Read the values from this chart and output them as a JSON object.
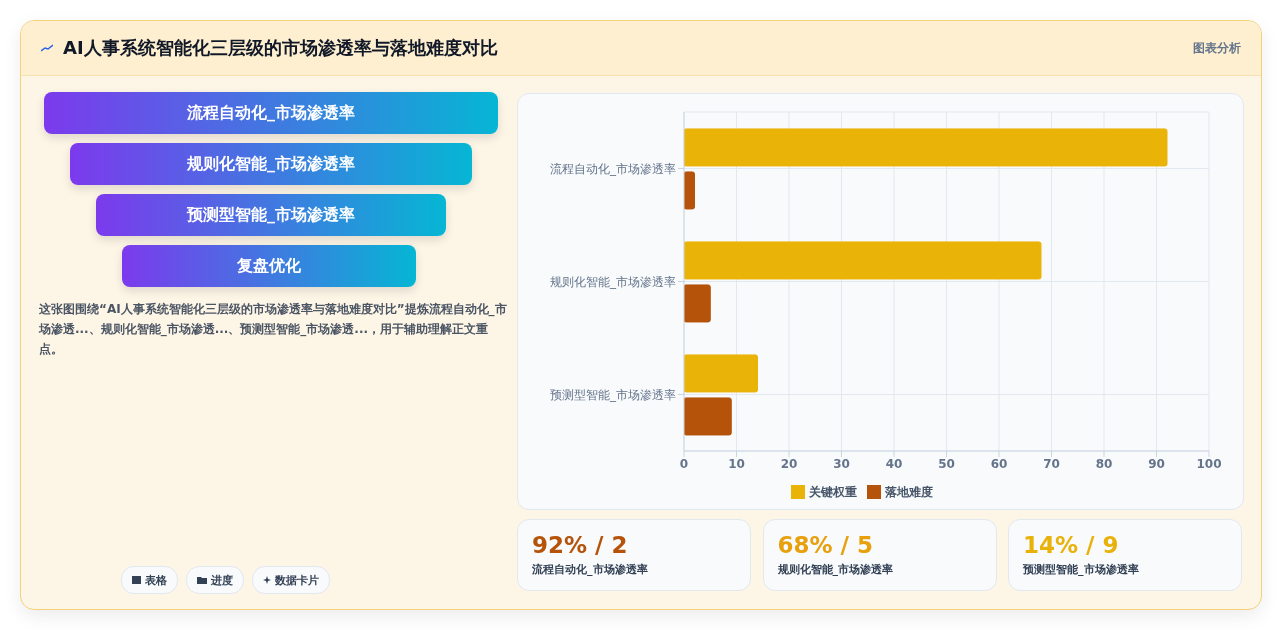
{
  "chart_data": {
    "type": "bar",
    "orientation": "horizontal",
    "title": "AI人事系统智能化三层级的市场渗透率与落地难度对比",
    "categories": [
      "流程自动化_市场渗透率",
      "规则化智能_市场渗透率",
      "预测型智能_市场渗透率"
    ],
    "series": [
      {
        "name": "关键权重",
        "color": "#eab308",
        "values": [
          92,
          68,
          14
        ]
      },
      {
        "name": "落地难度",
        "color": "#b45309",
        "values": [
          2,
          5,
          9
        ]
      }
    ],
    "xlim": [
      0,
      100
    ],
    "xticks": [
      0,
      10,
      20,
      30,
      40,
      50,
      60,
      70,
      80,
      90,
      100
    ],
    "grid": true,
    "legend": "bottom",
    "annotations": [
      "图表分析",
      "流程自动化_市场渗透率",
      "规则化智能_市场渗透率",
      "预测型智能_市场渗透率",
      "复盘优化",
      "这张图围绕“AI人事系统智能化三层级的市场渗透率与落地难度对比”提炼流程自动化_市场渗透...、规则化智能_市场渗透...、预测型智能_市场渗透...，用于辅助理解正文重点。",
      "92% / 2",
      "68% / 5",
      "14% / 9",
      "流程自动化_市场渗透率",
      "规则化智能_市场渗透率",
      "预测型智能_市场渗透率",
      "表格",
      "进度",
      "数据卡片"
    ]
  }
}
